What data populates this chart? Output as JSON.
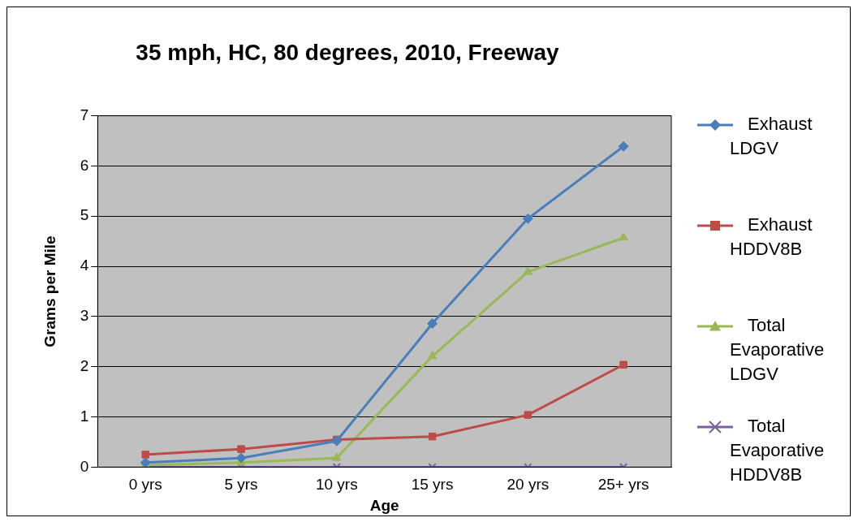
{
  "chart_data": {
    "type": "line",
    "title": "35 mph, HC, 80 degrees, 2010, Freeway",
    "xlabel": "Age",
    "ylabel": "Grams per Mile",
    "categories": [
      "0 yrs",
      "5 yrs",
      "10 yrs",
      "15 yrs",
      "20 yrs",
      "25+ yrs"
    ],
    "ylim": [
      0,
      7
    ],
    "yticks": [
      0,
      1,
      2,
      3,
      4,
      5,
      6,
      7
    ],
    "grid": "y",
    "legend": "right",
    "series": [
      {
        "name": "Exhaust LDGV",
        "color": "#4a7ebb",
        "marker": "diamond",
        "values": [
          0.09,
          0.18,
          0.52,
          2.86,
          4.95,
          6.39
        ]
      },
      {
        "name": "Exhaust HDDV8B",
        "color": "#be4b48",
        "marker": "square",
        "values": [
          0.25,
          0.36,
          0.55,
          0.61,
          1.04,
          2.04
        ]
      },
      {
        "name": "Total Evaporative LDGV",
        "color": "#98b954",
        "marker": "triangle",
        "values": [
          0.04,
          0.09,
          0.18,
          2.21,
          3.89,
          4.57
        ]
      },
      {
        "name": "Total Evaporative HDDV8B",
        "color": "#7d60a0",
        "marker": "cross",
        "values": [
          0,
          0,
          0,
          0,
          0,
          0
        ]
      }
    ]
  }
}
